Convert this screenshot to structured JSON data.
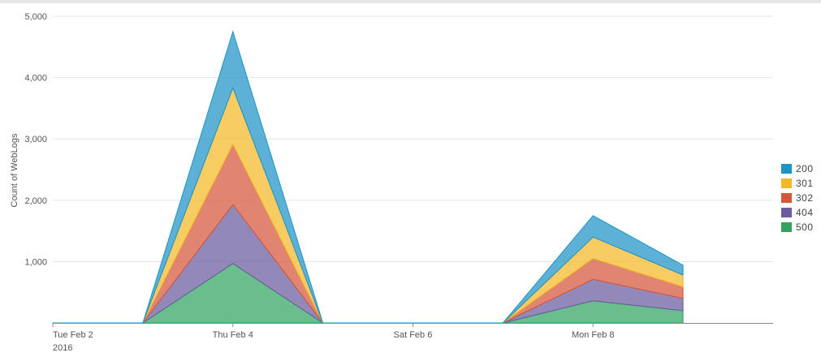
{
  "chart_data": {
    "type": "area",
    "stacked": true,
    "title": "",
    "xlabel": "",
    "ylabel": "Count of WebLogs",
    "ylim": [
      0,
      5000
    ],
    "yticks": [
      1000,
      2000,
      3000,
      4000,
      5000
    ],
    "ytick_labels": [
      "1,000",
      "2,000",
      "3,000",
      "4,000",
      "5,000"
    ],
    "x": [
      "2016-02-02",
      "2016-02-03",
      "2016-02-04",
      "2016-02-05",
      "2016-02-06",
      "2016-02-07",
      "2016-02-08",
      "2016-02-09"
    ],
    "xlim": [
      "2016-02-02",
      "2016-02-10"
    ],
    "xticks": [
      {
        "date": "2016-02-02",
        "label": "Tue Feb 2",
        "sublabel": "2016"
      },
      {
        "date": "2016-02-04",
        "label": "Thu Feb 4",
        "sublabel": ""
      },
      {
        "date": "2016-02-06",
        "label": "Sat Feb 6",
        "sublabel": ""
      },
      {
        "date": "2016-02-08",
        "label": "Mon Feb 8",
        "sublabel": ""
      }
    ],
    "grid": true,
    "legend_position": "right",
    "series": [
      {
        "name": "200",
        "color": "#1e93c6",
        "values": [
          0,
          0,
          920,
          0,
          0,
          0,
          350,
          160
        ]
      },
      {
        "name": "301",
        "color": "#f2b827",
        "values": [
          0,
          0,
          920,
          0,
          0,
          0,
          350,
          190
        ]
      },
      {
        "name": "302",
        "color": "#d6563c",
        "values": [
          0,
          0,
          980,
          0,
          0,
          0,
          340,
          190
        ]
      },
      {
        "name": "404",
        "color": "#6a5c9e",
        "values": [
          0,
          0,
          960,
          0,
          0,
          0,
          350,
          200
        ]
      },
      {
        "name": "500",
        "color": "#31a35f",
        "values": [
          0,
          0,
          970,
          0,
          0,
          0,
          360,
          200
        ]
      }
    ]
  }
}
